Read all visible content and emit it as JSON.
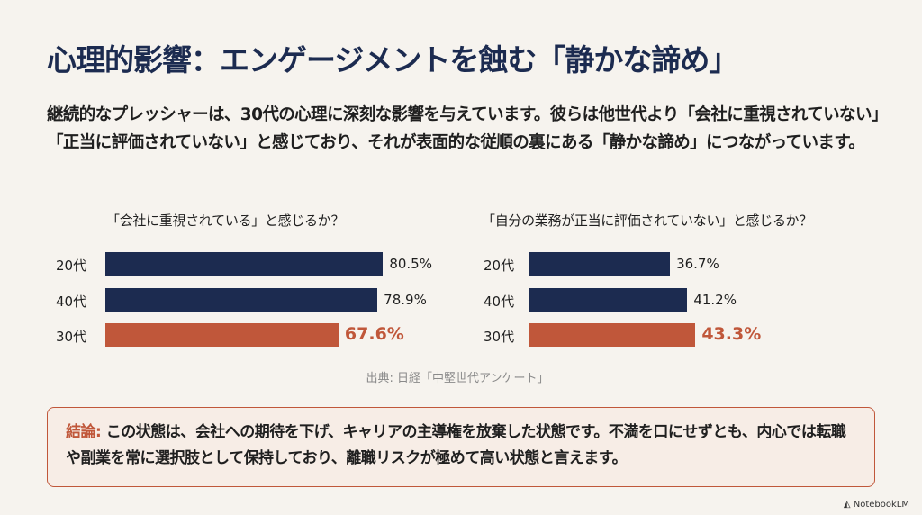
{
  "title": "心理的影響：エンゲージメントを蝕む「静かな諦め」",
  "intro": "継続的なプレッシャーは、30代の心理に深刻な影響を与えています。彼らは他世代より「会社に重視されていない」「正当に評価されていない」と感じており、それが表面的な従順の裏にある「静かな諦め」につながっています。",
  "colors": {
    "navy": "#1c2b50",
    "accent": "#c0573a"
  },
  "chart_data": [
    {
      "type": "bar",
      "orientation": "horizontal",
      "title": "「会社に重視されている」と感じるか？",
      "categories": [
        "20代",
        "40代",
        "30代"
      ],
      "values": [
        80.5,
        78.9,
        67.6
      ],
      "labels": [
        "80.5%",
        "78.9%",
        "67.6%"
      ],
      "highlight": "30代",
      "xlim": [
        0,
        100
      ]
    },
    {
      "type": "bar",
      "orientation": "horizontal",
      "title": "「自分の業務が正当に評価されていない」と感じるか？",
      "categories": [
        "20代",
        "40代",
        "30代"
      ],
      "values": [
        36.7,
        41.2,
        43.3
      ],
      "labels": [
        "36.7%",
        "41.2%",
        "43.3%"
      ],
      "highlight": "30代",
      "xlim": [
        0,
        100
      ]
    }
  ],
  "source": "出典: 日経「中堅世代アンケート」",
  "conclusion": {
    "key": "結論:",
    "text": " この状態は、会社への期待を下げ、キャリアの主導権を放棄した状態です。不満を口にせずとも、内心では転職や副業を常に選択肢として保持しており、離職リスクが極めて高い状態と言えます。"
  },
  "brand": "NotebookLM"
}
